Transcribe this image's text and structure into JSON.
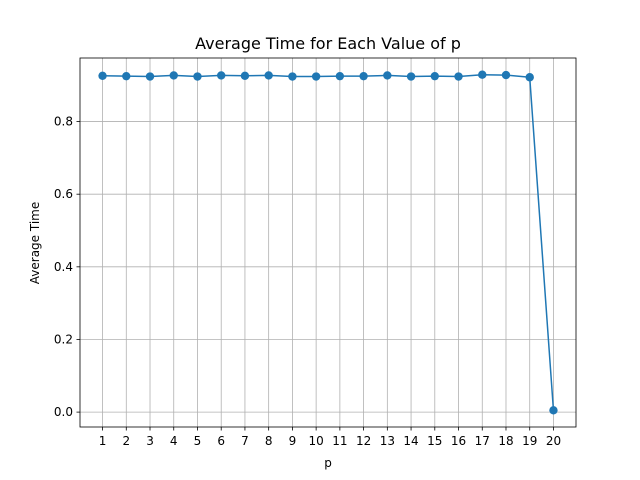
{
  "chart_data": {
    "type": "line",
    "title": "Average Time for Each Value of p",
    "xlabel": "p",
    "ylabel": "Average Time",
    "x": [
      1,
      2,
      3,
      4,
      5,
      6,
      7,
      8,
      9,
      10,
      11,
      12,
      13,
      14,
      15,
      16,
      17,
      18,
      19,
      20
    ],
    "series": [
      {
        "values": [
          0.926,
          0.925,
          0.924,
          0.927,
          0.924,
          0.927,
          0.926,
          0.927,
          0.924,
          0.924,
          0.925,
          0.925,
          0.927,
          0.924,
          0.925,
          0.924,
          0.929,
          0.928,
          0.922,
          0.005
        ],
        "color": "#1f77b4",
        "marker": "circle"
      }
    ],
    "xticks": [
      "1",
      "2",
      "3",
      "4",
      "5",
      "6",
      "7",
      "8",
      "9",
      "10",
      "11",
      "12",
      "13",
      "14",
      "15",
      "16",
      "17",
      "18",
      "19",
      "20"
    ],
    "yticks": [
      "0.0",
      "0.2",
      "0.4",
      "0.6",
      "0.8"
    ],
    "ytick_values": [
      0.0,
      0.2,
      0.4,
      0.6,
      0.8
    ],
    "xlim": [
      0.05,
      20.95
    ],
    "ylim": [
      -0.041,
      0.975
    ],
    "grid": true
  }
}
